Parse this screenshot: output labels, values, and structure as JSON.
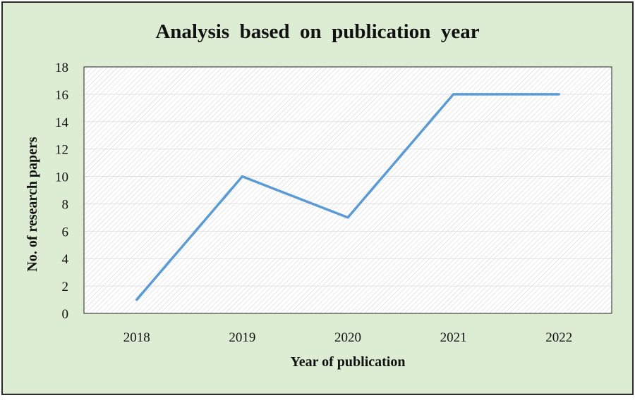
{
  "colors": {
    "outer_background": "#dcedd3",
    "outer_border": "#2b2b2b",
    "plot_background": "#ffffff",
    "hatch": "#cfcfcf",
    "gridline": "#e2e2e2",
    "plot_border": "#222222",
    "series_line": "#5b9bd5"
  },
  "chart_data": {
    "type": "line",
    "title": "Analysis  based  on  publication  year",
    "xlabel": "Year of publication",
    "ylabel": "No. of research papers",
    "categories": [
      "2018",
      "2019",
      "2020",
      "2021",
      "2022"
    ],
    "series": [
      {
        "values": [
          1,
          10,
          7,
          16,
          16
        ]
      }
    ],
    "ylim": [
      0,
      18
    ],
    "yticks": [
      "0",
      "2",
      "4",
      "6",
      "8",
      "10",
      "12",
      "14",
      "16",
      "18"
    ],
    "grid": true,
    "legend": "none"
  }
}
